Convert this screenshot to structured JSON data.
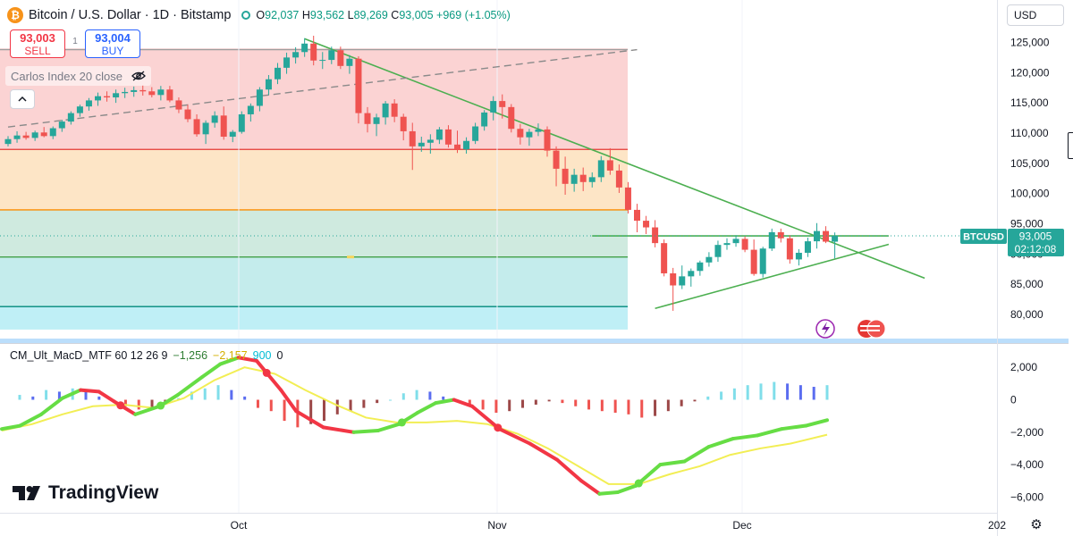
{
  "header": {
    "coin_glyph": "₿",
    "title": "Bitcoin / U.S. Dollar · 1D · Bitstamp",
    "open_label": "O",
    "open": "92,037",
    "high_label": "H",
    "high": "93,562",
    "low_label": "L",
    "low": "89,269",
    "close_label": "C",
    "close": "93,005",
    "change": "+969 (+1.05%)"
  },
  "trade": {
    "sell_price": "93,003",
    "sell_label": "SELL",
    "buy_price": "93,004",
    "buy_label": "BUY",
    "spread": "1"
  },
  "indicator_label": "Carlos Index 20 close",
  "currency": "USD",
  "price_tag": {
    "symbol": "BTCUSD",
    "price": "93,005",
    "countdown": "02:12:08"
  },
  "macd_label": {
    "name": "CM_Ult_MacD_MTF 60 12 26 9",
    "v1": "−1,256",
    "v2": "−2,157",
    "v3": "900",
    "v4": "0"
  },
  "brand": "TradingView",
  "colors": {
    "up": "#26a69a",
    "down": "#ef5350",
    "zone_red": "#fbd3d3",
    "zone_orange": "#fde5c6",
    "zone_green": "#cfeadf",
    "zone_teal": "#c4ecec",
    "zone_cyan": "#bfeff6",
    "trend": "#4caf50",
    "macd_up": "#66dd44",
    "macd_down": "#f23645",
    "signal": "#f2ee54",
    "hist_blue": "#5b6df0",
    "hist_cyan": "#80deea",
    "hist_red": "#ef5350",
    "hist_maroon": "#9c4848"
  },
  "chart_data": [
    {
      "type": "candlestick",
      "title": "Bitcoin / U.S. Dollar · 1D · Bitstamp",
      "x_ticks": [
        "Oct",
        "Nov",
        "Dec",
        "202"
      ],
      "y_ticks": [
        80000,
        85000,
        90000,
        95000,
        100000,
        105000,
        110000,
        115000,
        120000,
        125000
      ],
      "ylim": [
        77500,
        127500
      ],
      "last_price": 93005,
      "horizontal_levels": [
        {
          "price": 123800,
          "color": "#9e9e9e"
        },
        {
          "price": 107300,
          "color": "#e53935"
        },
        {
          "price": 97300,
          "color": "#fb8c00"
        },
        {
          "price": 89500,
          "color": "#43a047"
        },
        {
          "price": 81300,
          "color": "#00897b"
        }
      ],
      "zones": [
        {
          "from": 107300,
          "to": 124000,
          "color": "#fbd3d3"
        },
        {
          "from": 97300,
          "to": 107300,
          "color": "#fde5c6"
        },
        {
          "from": 89500,
          "to": 97300,
          "color": "#cfeadf"
        },
        {
          "from": 81300,
          "to": 89500,
          "color": "#c4ecec"
        },
        {
          "from": 77500,
          "to": 81300,
          "color": "#bfeff6"
        }
      ],
      "trend_lines": [
        {
          "from": [
            33,
            125600
          ],
          "to": [
            102,
            86000
          ],
          "style": "solid"
        },
        {
          "from": [
            65,
            93000
          ],
          "to": [
            98,
            93000
          ],
          "style": "solid"
        },
        {
          "from": [
            72,
            81000
          ],
          "to": [
            98,
            91600
          ],
          "style": "solid"
        },
        {
          "from": [
            0,
            111000
          ],
          "to": [
            70,
            123800
          ],
          "style": "dashed"
        }
      ],
      "candles": [
        [
          108200,
          109500,
          107800,
          109000
        ],
        [
          109000,
          110300,
          108400,
          109600
        ],
        [
          109600,
          110200,
          108900,
          109200
        ],
        [
          109200,
          110400,
          108700,
          110100
        ],
        [
          110100,
          111000,
          109300,
          109500
        ],
        [
          109500,
          111100,
          109000,
          110800
        ],
        [
          110800,
          112200,
          110200,
          111900
        ],
        [
          111900,
          113600,
          111400,
          113300
        ],
        [
          113300,
          114700,
          112700,
          114400
        ],
        [
          114400,
          115800,
          113700,
          115400
        ],
        [
          115400,
          116700,
          114500,
          116100
        ],
        [
          116100,
          116900,
          115200,
          115900
        ],
        [
          115900,
          117200,
          115000,
          116600
        ],
        [
          116600,
          117500,
          115800,
          116800
        ],
        [
          116800,
          117700,
          116000,
          117100
        ],
        [
          117100,
          117900,
          116200,
          116900
        ],
        [
          116900,
          117600,
          115900,
          116300
        ],
        [
          116300,
          117800,
          115400,
          117200
        ],
        [
          117200,
          117800,
          115100,
          115400
        ],
        [
          115400,
          115900,
          113300,
          113900
        ],
        [
          113900,
          114700,
          111800,
          112300
        ],
        [
          112300,
          113100,
          109400,
          109800
        ],
        [
          109800,
          112100,
          108200,
          111700
        ],
        [
          111700,
          113600,
          110900,
          112900
        ],
        [
          112900,
          114400,
          108900,
          109400
        ],
        [
          109400,
          110500,
          108500,
          110200
        ],
        [
          110200,
          113600,
          109900,
          113100
        ],
        [
          113100,
          114900,
          111900,
          114500
        ],
        [
          114500,
          117600,
          113600,
          117200
        ],
        [
          117200,
          119600,
          116300,
          118900
        ],
        [
          118900,
          121600,
          118100,
          120800
        ],
        [
          120800,
          123300,
          119800,
          122500
        ],
        [
          122500,
          124200,
          121500,
          123400
        ],
        [
          123400,
          125700,
          122600,
          124800
        ],
        [
          124800,
          126100,
          121200,
          122000
        ],
        [
          122000,
          123400,
          120600,
          122100
        ],
        [
          122100,
          124300,
          121400,
          123700
        ],
        [
          123700,
          124300,
          120600,
          121100
        ],
        [
          121100,
          122900,
          119800,
          122300
        ],
        [
          122300,
          122700,
          111600,
          113300
        ],
        [
          113300,
          114300,
          110100,
          111500
        ],
        [
          111500,
          113200,
          109500,
          112600
        ],
        [
          112600,
          115300,
          111400,
          114900
        ],
        [
          114900,
          115600,
          111800,
          112700
        ],
        [
          112700,
          113200,
          108800,
          110300
        ],
        [
          110300,
          111700,
          103900,
          107800
        ],
        [
          107800,
          109400,
          106900,
          108400
        ],
        [
          108400,
          109800,
          106600,
          108900
        ],
        [
          108900,
          111000,
          108200,
          110600
        ],
        [
          110600,
          111300,
          107600,
          108100
        ],
        [
          108100,
          110400,
          106700,
          107300
        ],
        [
          107300,
          109300,
          106600,
          108700
        ],
        [
          108700,
          111700,
          108200,
          111100
        ],
        [
          111100,
          113800,
          110400,
          113400
        ],
        [
          113400,
          116100,
          112100,
          115300
        ],
        [
          115300,
          116400,
          112400,
          114300
        ],
        [
          114300,
          114800,
          110100,
          110700
        ],
        [
          110700,
          111500,
          108100,
          109300
        ],
        [
          109300,
          110700,
          107900,
          110200
        ],
        [
          110200,
          111600,
          109500,
          110600
        ],
        [
          110600,
          111100,
          106100,
          107100
        ],
        [
          107100,
          107800,
          101200,
          104100
        ],
        [
          104100,
          106100,
          99800,
          101600
        ],
        [
          101600,
          104100,
          100300,
          103100
        ],
        [
          103100,
          104300,
          100400,
          101900
        ],
        [
          101900,
          103500,
          101000,
          102700
        ],
        [
          102700,
          106200,
          101900,
          105500
        ],
        [
          105500,
          107500,
          103100,
          103800
        ],
        [
          103800,
          104800,
          100100,
          101000
        ],
        [
          101000,
          101900,
          96700,
          97300
        ],
        [
          97300,
          98300,
          93600,
          95500
        ],
        [
          95500,
          96300,
          93300,
          94400
        ],
        [
          94400,
          95600,
          91100,
          91800
        ],
        [
          91800,
          92400,
          86300,
          86800
        ],
        [
          86800,
          87700,
          80600,
          84800
        ],
        [
          84800,
          88100,
          84200,
          86300
        ],
        [
          86300,
          87600,
          84600,
          87200
        ],
        [
          87200,
          88900,
          86400,
          88600
        ],
        [
          88600,
          90300,
          87900,
          89500
        ],
        [
          89500,
          92200,
          88700,
          91500
        ],
        [
          91500,
          92600,
          90700,
          91800
        ],
        [
          91800,
          93100,
          91200,
          92500
        ],
        [
          92500,
          92900,
          90300,
          90700
        ],
        [
          90700,
          92400,
          86400,
          86700
        ],
        [
          86700,
          91200,
          86100,
          90900
        ],
        [
          90900,
          94200,
          90500,
          93600
        ],
        [
          93600,
          94200,
          91900,
          92600
        ],
        [
          92600,
          93100,
          88400,
          89100
        ],
        [
          89100,
          90800,
          88100,
          90200
        ],
        [
          90200,
          92700,
          89500,
          92100
        ],
        [
          92100,
          95100,
          90900,
          93800
        ],
        [
          93800,
          94600,
          91800,
          92037
        ],
        [
          92037,
          93562,
          89269,
          93005
        ]
      ]
    },
    {
      "type": "line+histogram",
      "title": "CM_Ult_MacD_MTF 60 12 26 9",
      "y_ticks": [
        2000,
        0,
        -2000,
        -4000,
        -6000
      ],
      "ylim": [
        -6600,
        2500
      ],
      "macd": [
        [
          0,
          -1800
        ],
        [
          6,
          -1600
        ],
        [
          13,
          -900
        ],
        [
          20,
          100
        ],
        [
          26,
          600
        ],
        [
          32,
          500
        ],
        [
          37,
          -100
        ],
        [
          44,
          -900
        ],
        [
          52,
          -400
        ],
        [
          58,
          300
        ],
        [
          66,
          1400
        ],
        [
          72,
          2200
        ],
        [
          78,
          2600
        ],
        [
          84,
          2400
        ],
        [
          92,
          600
        ],
        [
          97,
          -700
        ],
        [
          106,
          -1700
        ],
        [
          116,
          -2000
        ],
        [
          124,
          -1900
        ],
        [
          131,
          -1500
        ],
        [
          137,
          -800
        ],
        [
          143,
          -200
        ],
        [
          149,
          0
        ],
        [
          155,
          -400
        ],
        [
          164,
          -1800
        ],
        [
          174,
          -2700
        ],
        [
          183,
          -3700
        ],
        [
          191,
          -5000
        ],
        [
          197,
          -5800
        ],
        [
          203,
          -5700
        ],
        [
          209,
          -5300
        ],
        [
          217,
          -4000
        ],
        [
          225,
          -3800
        ],
        [
          233,
          -2900
        ],
        [
          241,
          -2400
        ],
        [
          249,
          -2200
        ],
        [
          257,
          -1800
        ],
        [
          265,
          -1600
        ],
        [
          272,
          -1256
        ]
      ],
      "signal": [
        [
          0,
          -1900
        ],
        [
          10,
          -1500
        ],
        [
          20,
          -900
        ],
        [
          30,
          -400
        ],
        [
          40,
          -300
        ],
        [
          50,
          -500
        ],
        [
          60,
          100
        ],
        [
          70,
          1200
        ],
        [
          80,
          2000
        ],
        [
          90,
          1600
        ],
        [
          100,
          600
        ],
        [
          110,
          -300
        ],
        [
          120,
          -1100
        ],
        [
          130,
          -1400
        ],
        [
          140,
          -1400
        ],
        [
          150,
          -1300
        ],
        [
          160,
          -1500
        ],
        [
          170,
          -2100
        ],
        [
          180,
          -3000
        ],
        [
          190,
          -4100
        ],
        [
          200,
          -5200
        ],
        [
          210,
          -5200
        ],
        [
          220,
          -4600
        ],
        [
          230,
          -4100
        ],
        [
          240,
          -3400
        ],
        [
          250,
          -3000
        ],
        [
          260,
          -2700
        ],
        [
          272,
          -2157
        ]
      ],
      "histogram": [
        300,
        200,
        600,
        500,
        700,
        500,
        200,
        -100,
        -400,
        -600,
        -500,
        -300,
        100,
        500,
        700,
        900,
        600,
        200,
        -500,
        -700,
        -1300,
        -1700,
        -1500,
        -1300,
        -900,
        -700,
        -500,
        -200,
        0,
        400,
        600,
        500,
        200,
        -100,
        -300,
        -600,
        -800,
        -700,
        -500,
        -300,
        -100,
        -200,
        -400,
        -600,
        -700,
        -800,
        -900,
        -1100,
        -1000,
        -700,
        -400,
        -100,
        200,
        500,
        700,
        900,
        1000,
        1100,
        1000,
        900,
        800,
        900
      ]
    }
  ]
}
